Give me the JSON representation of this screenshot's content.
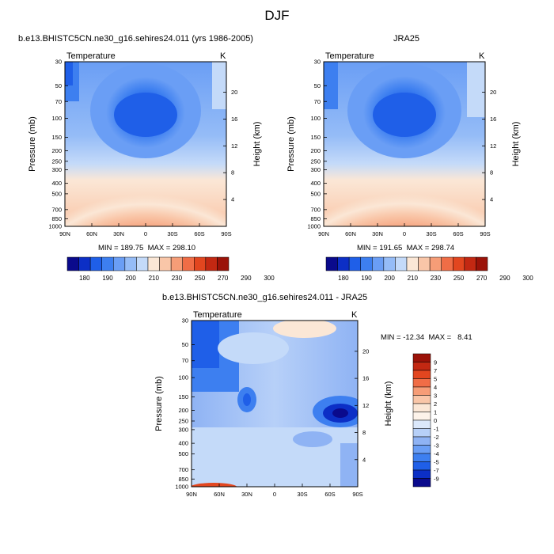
{
  "page": {
    "title": "DJF"
  },
  "chart_data": [
    {
      "type": "heatmap",
      "title": "b.e13.BHISTC5CN.ne30_g16.sehires24.011 (yrs 1986-2005)",
      "subtitle_left": "Temperature",
      "subtitle_right": "K",
      "ylabel": "Pressure (mb)",
      "ylabel_right": "Height (km)",
      "x_ticks": [
        "90N",
        "60N",
        "30N",
        "0",
        "30S",
        "60S",
        "90S"
      ],
      "y_ticks": [
        "30",
        "50",
        "70",
        "100",
        "150",
        "200",
        "250",
        "300",
        "400",
        "500",
        "700",
        "850",
        "1000"
      ],
      "height_ticks": [
        "20",
        "16",
        "12",
        "8",
        "4"
      ],
      "min_max_text": "MIN = 189.75  MAX = 298.10",
      "colorbar_labels": [
        "180",
        "190",
        "200",
        "210",
        "230",
        "250",
        "270",
        "290",
        "300"
      ],
      "colorbar_colors": [
        "#0a0a8c",
        "#0c2fc6",
        "#1f5fe8",
        "#3d7ff0",
        "#6a9ef5",
        "#95bcf7",
        "#c4daf9",
        "#fbe7d6",
        "#f9c6a8",
        "#f69d77",
        "#f06d46",
        "#e2461f",
        "#c32812",
        "#9b1208"
      ]
    },
    {
      "type": "heatmap",
      "title": "JRA25",
      "subtitle_left": "Temperature",
      "subtitle_right": "K",
      "ylabel": "Pressure (mb)",
      "ylabel_right": "Height (km)",
      "x_ticks": [
        "90N",
        "60N",
        "30N",
        "0",
        "30S",
        "60S",
        "90S"
      ],
      "y_ticks": [
        "30",
        "50",
        "70",
        "100",
        "150",
        "200",
        "250",
        "300",
        "400",
        "500",
        "700",
        "850",
        "1000"
      ],
      "height_ticks": [
        "20",
        "16",
        "12",
        "8",
        "4"
      ],
      "min_max_text": "MIN = 191.65  MAX = 298.74",
      "colorbar_labels": [
        "180",
        "190",
        "200",
        "210",
        "230",
        "250",
        "270",
        "290",
        "300"
      ],
      "colorbar_colors": [
        "#0a0a8c",
        "#0c2fc6",
        "#1f5fe8",
        "#3d7ff0",
        "#6a9ef5",
        "#95bcf7",
        "#c4daf9",
        "#fbe7d6",
        "#f9c6a8",
        "#f69d77",
        "#f06d46",
        "#e2461f",
        "#c32812",
        "#9b1208"
      ]
    },
    {
      "type": "heatmap",
      "title": "b.e13.BHISTC5CN.ne30_g16.sehires24.011 - JRA25",
      "subtitle_left": "Temperature",
      "subtitle_right": "K",
      "ylabel": "Pressure (mb)",
      "ylabel_right": "Height (km)",
      "x_ticks": [
        "90N",
        "60N",
        "30N",
        "0",
        "30S",
        "60S",
        "90S"
      ],
      "y_ticks": [
        "30",
        "50",
        "70",
        "100",
        "150",
        "200",
        "250",
        "300",
        "400",
        "500",
        "700",
        "850",
        "1000"
      ],
      "height_ticks": [
        "20",
        "16",
        "12",
        "8",
        "4"
      ],
      "min_max_text": "MIN = -12.34  MAX =   8.41",
      "colorbar_labels": [
        "9",
        "7",
        "5",
        "4",
        "3",
        "2",
        "1",
        "0",
        "-1",
        "-2",
        "-3",
        "-4",
        "-5",
        "-7",
        "-9"
      ],
      "colorbar_colors": [
        "#9b1208",
        "#c32812",
        "#e2461f",
        "#f06d46",
        "#f69d77",
        "#f9c6a8",
        "#fbe7d6",
        "#fdf3ea",
        "#dbe8fb",
        "#b7d0f8",
        "#8fb3f4",
        "#6a9ef5",
        "#3d7ff0",
        "#1f5fe8",
        "#0c2fc6",
        "#0a0a8c"
      ]
    }
  ]
}
